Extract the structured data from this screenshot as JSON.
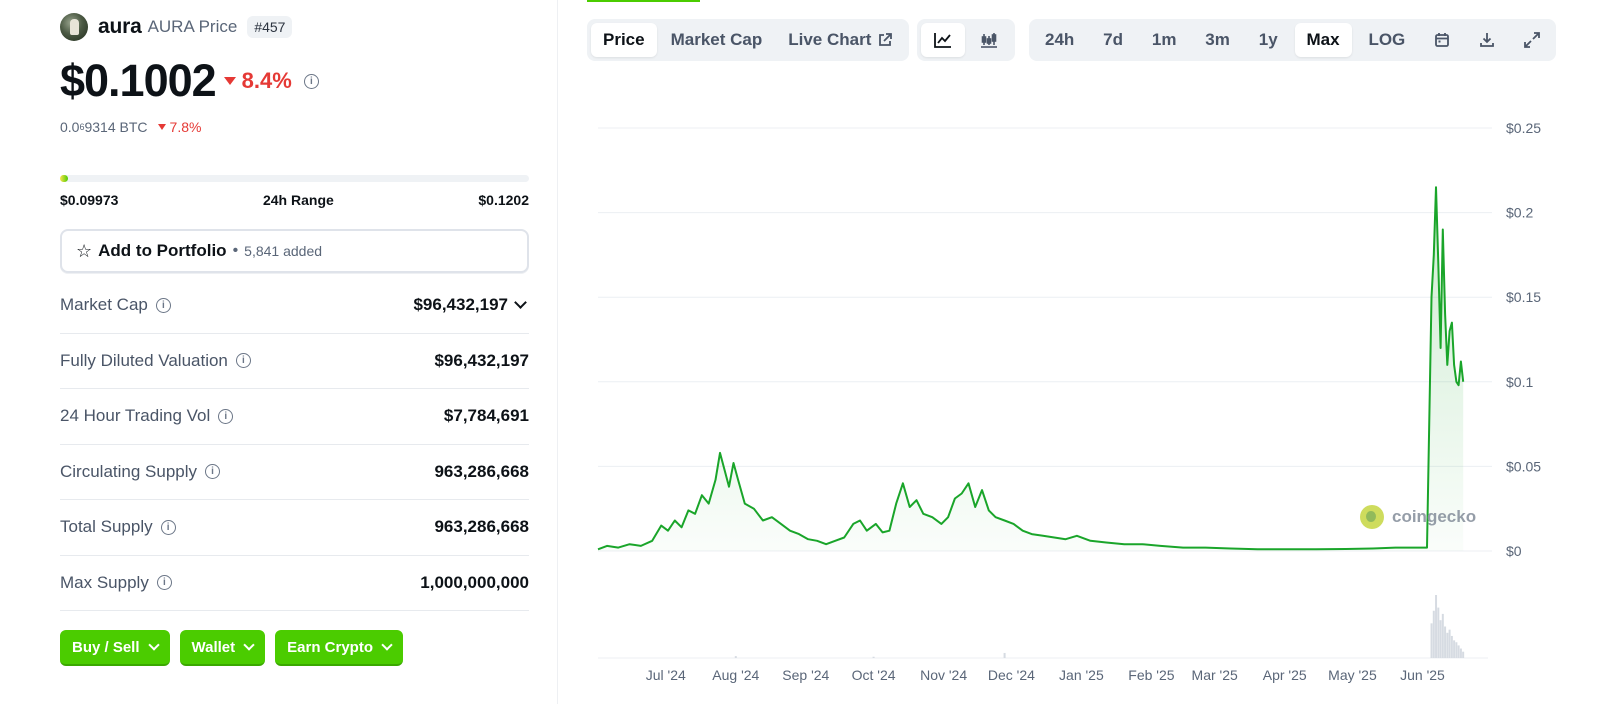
{
  "coin": {
    "name": "aura",
    "symbol_label": "AURA Price",
    "rank": "#457",
    "price": "$0.1002",
    "change_24h": "8.4%",
    "btc_price_prefix": "0.0",
    "btc_price_sub": "6",
    "btc_price_rest": "9314 BTC",
    "btc_change": "7.8%"
  },
  "range_24h": {
    "low": "$0.09973",
    "label": "24h Range",
    "high": "$0.1202",
    "position_fraction": 0.01
  },
  "portfolio": {
    "label": "Add to Portfolio",
    "separator": "•",
    "count": "5,841 added"
  },
  "stats": [
    {
      "label": "Market Cap",
      "value": "$96,432,197",
      "expandable": true
    },
    {
      "label": "Fully Diluted Valuation",
      "value": "$96,432,197",
      "expandable": false
    },
    {
      "label": "24 Hour Trading Vol",
      "value": "$7,784,691",
      "expandable": false
    },
    {
      "label": "Circulating Supply",
      "value": "963,286,668",
      "expandable": false
    },
    {
      "label": "Total Supply",
      "value": "963,286,668",
      "expandable": false
    },
    {
      "label": "Max Supply",
      "value": "1,000,000,000",
      "expandable": false
    }
  ],
  "actions": [
    {
      "label": "Buy / Sell"
    },
    {
      "label": "Wallet"
    },
    {
      "label": "Earn Crypto"
    }
  ],
  "chart_tabs": [
    {
      "label": "Price",
      "active": true
    },
    {
      "label": "Market Cap",
      "active": false
    },
    {
      "label": "Live Chart",
      "active": false,
      "icon": "external-link-icon"
    }
  ],
  "chart_types": [
    {
      "icon": "line-chart-icon",
      "active": true
    },
    {
      "icon": "candlestick-icon",
      "active": false
    }
  ],
  "ranges": [
    {
      "label": "24h",
      "active": false
    },
    {
      "label": "7d",
      "active": false
    },
    {
      "label": "1m",
      "active": false
    },
    {
      "label": "3m",
      "active": false
    },
    {
      "label": "1y",
      "active": false
    },
    {
      "label": "Max",
      "active": true
    },
    {
      "label": "LOG",
      "active": false
    }
  ],
  "tool_icons": [
    "calendar-icon",
    "download-icon",
    "fullscreen-icon"
  ],
  "watermark": "coingecko",
  "colors": {
    "accent_green": "#4bcc00",
    "line_green": "#1aa52a",
    "negative_red": "#e53935"
  },
  "chart_data": {
    "type": "area",
    "title": "",
    "xlabel": "",
    "ylabel": "",
    "ylim": [
      0,
      0.25
    ],
    "yticks": [
      {
        "v": 0,
        "label": "$0"
      },
      {
        "v": 0.05,
        "label": "$0.05"
      },
      {
        "v": 0.1,
        "label": "$0.1"
      },
      {
        "v": 0.15,
        "label": "$0.15"
      },
      {
        "v": 0.2,
        "label": "$0.2"
      },
      {
        "v": 0.25,
        "label": "$0.25"
      }
    ],
    "xlim": [
      "2024-06-01",
      "2025-06-30"
    ],
    "xticks": [
      {
        "date": "2024-07-01",
        "label": "Jul '24"
      },
      {
        "date": "2024-08-01",
        "label": "Aug '24"
      },
      {
        "date": "2024-09-01",
        "label": "Sep '24"
      },
      {
        "date": "2024-10-01",
        "label": "Oct '24"
      },
      {
        "date": "2024-11-01",
        "label": "Nov '24"
      },
      {
        "date": "2024-12-01",
        "label": "Dec '24"
      },
      {
        "date": "2025-01-01",
        "label": "Jan '25"
      },
      {
        "date": "2025-02-01",
        "label": "Feb '25"
      },
      {
        "date": "2025-03-01",
        "label": "Mar '25"
      },
      {
        "date": "2025-04-01",
        "label": "Apr '25"
      },
      {
        "date": "2025-05-01",
        "label": "May '25"
      },
      {
        "date": "2025-06-01",
        "label": "Jun '25"
      }
    ],
    "series": [
      {
        "points": [
          [
            "2024-06-01",
            0.001
          ],
          [
            "2024-06-05",
            0.003
          ],
          [
            "2024-06-10",
            0.002
          ],
          [
            "2024-06-15",
            0.004
          ],
          [
            "2024-06-20",
            0.003
          ],
          [
            "2024-06-25",
            0.006
          ],
          [
            "2024-06-29",
            0.015
          ],
          [
            "2024-07-02",
            0.012
          ],
          [
            "2024-07-05",
            0.018
          ],
          [
            "2024-07-08",
            0.014
          ],
          [
            "2024-07-11",
            0.024
          ],
          [
            "2024-07-14",
            0.022
          ],
          [
            "2024-07-17",
            0.033
          ],
          [
            "2024-07-20",
            0.028
          ],
          [
            "2024-07-23",
            0.042
          ],
          [
            "2024-07-25",
            0.058
          ],
          [
            "2024-07-27",
            0.048
          ],
          [
            "2024-07-29",
            0.038
          ],
          [
            "2024-07-31",
            0.052
          ],
          [
            "2024-08-02",
            0.042
          ],
          [
            "2024-08-05",
            0.028
          ],
          [
            "2024-08-09",
            0.025
          ],
          [
            "2024-08-13",
            0.018
          ],
          [
            "2024-08-17",
            0.02
          ],
          [
            "2024-08-21",
            0.016
          ],
          [
            "2024-08-25",
            0.012
          ],
          [
            "2024-08-29",
            0.01
          ],
          [
            "2024-09-02",
            0.007
          ],
          [
            "2024-09-06",
            0.006
          ],
          [
            "2024-09-10",
            0.004
          ],
          [
            "2024-09-14",
            0.006
          ],
          [
            "2024-09-18",
            0.008
          ],
          [
            "2024-09-22",
            0.016
          ],
          [
            "2024-09-25",
            0.018
          ],
          [
            "2024-09-28",
            0.012
          ],
          [
            "2024-10-02",
            0.016
          ],
          [
            "2024-10-05",
            0.011
          ],
          [
            "2024-10-08",
            0.012
          ],
          [
            "2024-10-11",
            0.028
          ],
          [
            "2024-10-14",
            0.04
          ],
          [
            "2024-10-17",
            0.026
          ],
          [
            "2024-10-20",
            0.03
          ],
          [
            "2024-10-23",
            0.022
          ],
          [
            "2024-10-27",
            0.02
          ],
          [
            "2024-10-31",
            0.016
          ],
          [
            "2024-11-03",
            0.02
          ],
          [
            "2024-11-06",
            0.031
          ],
          [
            "2024-11-09",
            0.034
          ],
          [
            "2024-11-12",
            0.04
          ],
          [
            "2024-11-15",
            0.026
          ],
          [
            "2024-11-18",
            0.036
          ],
          [
            "2024-11-21",
            0.024
          ],
          [
            "2024-11-24",
            0.02
          ],
          [
            "2024-11-28",
            0.018
          ],
          [
            "2024-12-02",
            0.016
          ],
          [
            "2024-12-06",
            0.012
          ],
          [
            "2024-12-10",
            0.01
          ],
          [
            "2024-12-15",
            0.009
          ],
          [
            "2024-12-20",
            0.008
          ],
          [
            "2024-12-25",
            0.007
          ],
          [
            "2024-12-30",
            0.009
          ],
          [
            "2025-01-05",
            0.006
          ],
          [
            "2025-01-12",
            0.005
          ],
          [
            "2025-01-20",
            0.004
          ],
          [
            "2025-01-28",
            0.004
          ],
          [
            "2025-02-05",
            0.003
          ],
          [
            "2025-02-15",
            0.002
          ],
          [
            "2025-02-25",
            0.002
          ],
          [
            "2025-03-08",
            0.0015
          ],
          [
            "2025-03-20",
            0.001
          ],
          [
            "2025-04-01",
            0.001
          ],
          [
            "2025-04-15",
            0.001
          ],
          [
            "2025-04-28",
            0.0012
          ],
          [
            "2025-05-10",
            0.0015
          ],
          [
            "2025-05-20",
            0.002
          ],
          [
            "2025-05-28",
            0.002
          ],
          [
            "2025-06-03",
            0.002
          ],
          [
            "2025-06-05",
            0.15
          ],
          [
            "2025-06-06",
            0.175
          ],
          [
            "2025-06-07",
            0.215
          ],
          [
            "2025-06-08",
            0.17
          ],
          [
            "2025-06-09",
            0.12
          ],
          [
            "2025-06-10",
            0.19
          ],
          [
            "2025-06-11",
            0.14
          ],
          [
            "2025-06-12",
            0.11
          ],
          [
            "2025-06-13",
            0.13
          ],
          [
            "2025-06-14",
            0.135
          ],
          [
            "2025-06-15",
            0.11
          ],
          [
            "2025-06-16",
            0.1
          ],
          [
            "2025-06-17",
            0.098
          ],
          [
            "2025-06-18",
            0.112
          ],
          [
            "2025-06-19",
            0.1
          ]
        ]
      }
    ],
    "volume": [
      [
        "2024-08-01",
        0.03
      ],
      [
        "2024-10-01",
        0.02
      ],
      [
        "2024-11-28",
        0.08
      ],
      [
        "2025-06-05",
        0.55
      ],
      [
        "2025-06-06",
        0.75
      ],
      [
        "2025-06-07",
        1.0
      ],
      [
        "2025-06-08",
        0.8
      ],
      [
        "2025-06-09",
        0.6
      ],
      [
        "2025-06-10",
        0.7
      ],
      [
        "2025-06-11",
        0.5
      ],
      [
        "2025-06-12",
        0.4
      ],
      [
        "2025-06-13",
        0.45
      ],
      [
        "2025-06-14",
        0.35
      ],
      [
        "2025-06-15",
        0.28
      ],
      [
        "2025-06-16",
        0.25
      ],
      [
        "2025-06-17",
        0.2
      ],
      [
        "2025-06-18",
        0.15
      ],
      [
        "2025-06-19",
        0.1
      ]
    ]
  }
}
